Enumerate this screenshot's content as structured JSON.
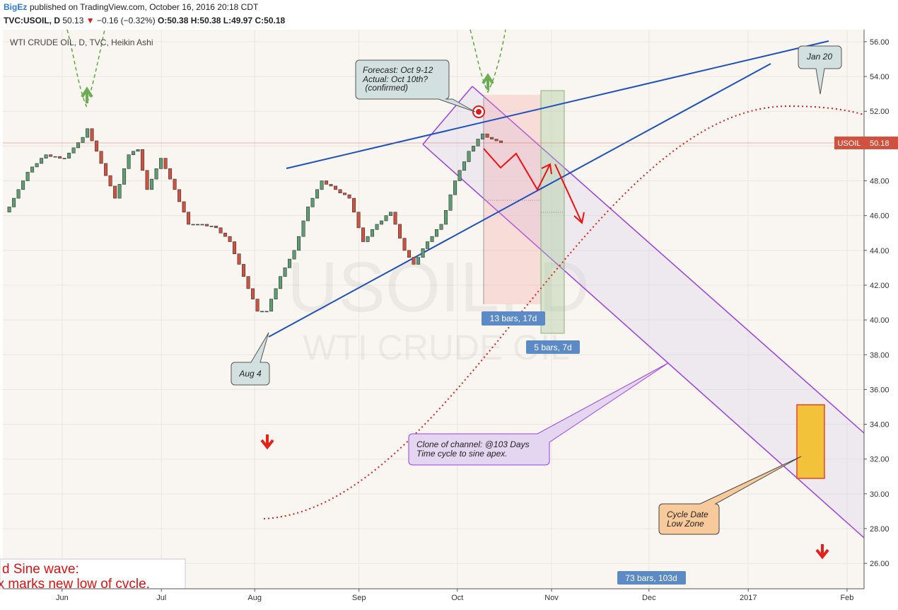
{
  "header": {
    "author": "BigEz",
    "published": "published on TradingView.com, October 16, 2016 20:18 CDT",
    "symbol": "TVC:USOIL, D",
    "last": "50.13",
    "change_arrow": "▼",
    "change": "−0.16 (−0.32%)",
    "open": "O:50.38",
    "high": "H:50.38",
    "low": "L:49.97",
    "close": "C:50.18"
  },
  "chart_data": {
    "type": "candlestick",
    "title": "WTI CRUDE OIL, D, TVC, Heikin Ashi",
    "watermark": "USOIL, D",
    "watermark_sub": "WTI CRUDE OIL",
    "series": [
      {
        "name": "USOIL",
        "up_color": "#5c9e72",
        "down_color": "#d1513f",
        "open": [
          46.2,
          46.5,
          47.0,
          47.5,
          48.0,
          48.5,
          48.8,
          49.0,
          49.3,
          49.5,
          49.4,
          49.4,
          49.3,
          49.3,
          49.6,
          49.9,
          50.2,
          50.5,
          51.0,
          50.3,
          49.7,
          49.0,
          48.3,
          47.7,
          47.0,
          47.8,
          48.7,
          49.5,
          49.7,
          49.8,
          48.6,
          47.5,
          48.1,
          48.7,
          49.3,
          48.7,
          48.1,
          47.5,
          46.8,
          46.2,
          45.5,
          45.5,
          45.5,
          45.5,
          45.4,
          45.4,
          45.3,
          45.0,
          44.8,
          44.5,
          43.8,
          43.2,
          42.5,
          41.8,
          41.2,
          40.5,
          40.5,
          40.5,
          41.2,
          41.8,
          42.5,
          43.0,
          43.5,
          44.0,
          44.8,
          45.7,
          46.5,
          47.0,
          47.5,
          48.0,
          47.8,
          47.7,
          47.5,
          47.3,
          47.2,
          47.0,
          46.2,
          45.3,
          44.5,
          44.8,
          45.2,
          45.5,
          45.7,
          46.0,
          46.2,
          45.5,
          44.7,
          44.0,
          43.6,
          43.2,
          43.6,
          44.1,
          44.5,
          44.8,
          45.2,
          45.5,
          46.3,
          47.2,
          48.0,
          48.6,
          49.1,
          49.7,
          50.0,
          50.4,
          50.7,
          50.5,
          50.4,
          50.3
        ],
        "close": [
          46.5,
          47.0,
          47.5,
          48.0,
          48.5,
          48.8,
          49.0,
          49.3,
          49.5,
          49.4,
          49.4,
          49.3,
          49.3,
          49.6,
          49.9,
          50.2,
          50.5,
          51.0,
          50.3,
          49.7,
          49.0,
          48.3,
          47.7,
          47.0,
          47.8,
          48.7,
          49.5,
          49.7,
          49.8,
          48.6,
          47.5,
          48.1,
          48.7,
          49.3,
          48.7,
          48.1,
          47.5,
          46.8,
          46.2,
          45.5,
          45.5,
          45.5,
          45.5,
          45.4,
          45.4,
          45.3,
          45.0,
          44.8,
          44.5,
          43.8,
          43.2,
          42.5,
          41.8,
          41.2,
          40.5,
          40.5,
          40.5,
          41.2,
          41.8,
          42.5,
          43.0,
          43.5,
          44.0,
          44.8,
          45.7,
          46.5,
          47.0,
          47.5,
          48.0,
          47.8,
          47.7,
          47.5,
          47.3,
          47.2,
          47.0,
          46.2,
          45.3,
          44.5,
          44.8,
          45.2,
          45.5,
          45.7,
          46.0,
          46.2,
          45.5,
          44.7,
          44.0,
          43.6,
          43.2,
          43.6,
          44.1,
          44.5,
          44.8,
          45.2,
          45.5,
          46.3,
          47.2,
          48.0,
          48.6,
          49.1,
          49.7,
          50.0,
          50.4,
          50.7,
          50.5,
          50.4,
          50.3,
          50.2
        ]
      }
    ],
    "last_price": 50.18,
    "ylim": [
      24.54,
      56.69
    ],
    "yticks": [
      {
        "value": 26,
        "label": "26.00"
      },
      {
        "value": 28,
        "label": "28.00"
      },
      {
        "value": 30,
        "label": "30.00"
      },
      {
        "value": 32,
        "label": "32.00"
      },
      {
        "value": 34,
        "label": "34.00"
      },
      {
        "value": 36,
        "label": "36.00"
      },
      {
        "value": 38,
        "label": "38.00"
      },
      {
        "value": 40,
        "label": "40.00"
      },
      {
        "value": 42,
        "label": "42.00"
      },
      {
        "value": 44,
        "label": "44.00"
      },
      {
        "value": 46,
        "label": "46.00"
      },
      {
        "value": 48,
        "label": "48.00"
      },
      {
        "value": 50,
        "label": "50.00"
      },
      {
        "value": 52,
        "label": "52.00"
      },
      {
        "value": 54,
        "label": "54.00"
      },
      {
        "value": 56,
        "label": "56.00"
      }
    ],
    "xlim": [
      -1.4,
      186
    ],
    "xticks": [
      {
        "value": 11.5,
        "label": "Jun"
      },
      {
        "value": 33.1,
        "label": "Jul"
      },
      {
        "value": 53.4,
        "label": "Aug"
      },
      {
        "value": 76.1,
        "label": "Sep"
      },
      {
        "value": 97.5,
        "label": "Oct"
      },
      {
        "value": 118,
        "label": "Nov"
      },
      {
        "value": 139.2,
        "label": "Dec"
      },
      {
        "value": 160.8,
        "label": "2017"
      },
      {
        "value": 182.3,
        "label": "Feb"
      }
    ],
    "grid": true
  },
  "annotations": {
    "forecast": [
      "Forecast: Oct 9-12",
      "Actual: Oct 10th?",
      " (confirmed)"
    ],
    "jan20": "Jan 20",
    "aug4": "Aug 4",
    "clone": [
      "Clone of channel: @103 Days",
      "Time cycle to sine apex."
    ],
    "cycle": [
      "Cycle Date",
      "Low Zone"
    ],
    "range1": "13 bars, 17d",
    "range2": "5 bars, 7d",
    "range3": "73 bars, 103d",
    "sine": [
      "d Sine wave:",
      "ex marks new low of cvcle."
    ]
  }
}
